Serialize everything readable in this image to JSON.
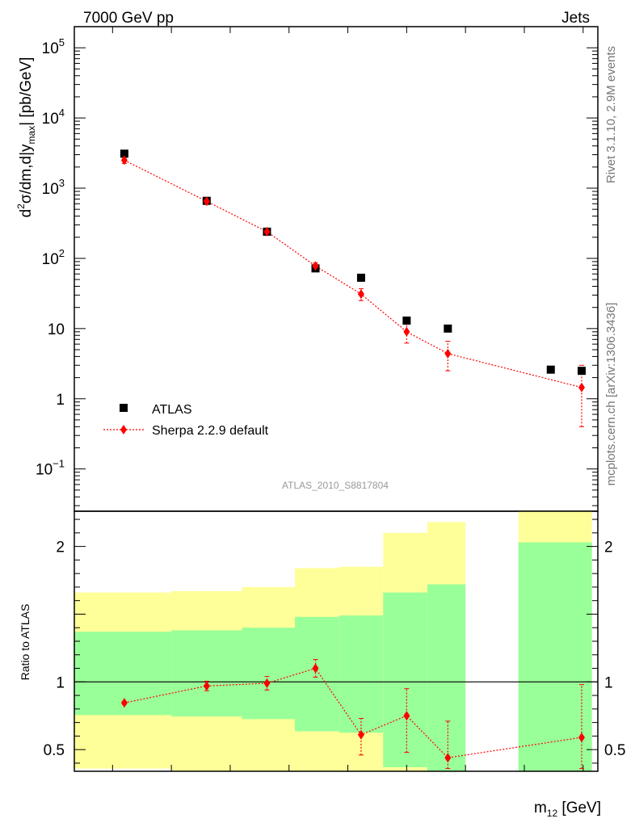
{
  "header": {
    "left": "7000 GeV pp",
    "right": "Jets"
  },
  "side_labels": {
    "rivet": "Rivet 3.1.10,  2.9M events",
    "mcplots": "mcplots.cern.ch [arXiv:1306.3436]"
  },
  "analysis_id": "ATLAS_2010_S8817804",
  "legend": {
    "placement": "bottom-left",
    "entries": [
      {
        "label": "ATLAS",
        "marker": "square",
        "color": "#000000"
      },
      {
        "label": "Sherpa 2.2.9 default",
        "marker": "diamond-dotted-line",
        "color": "#ff0000"
      }
    ]
  },
  "chart_data": [
    {
      "panel": "main",
      "type": "scatter",
      "ylabel": "d²σ/dm,d|y_max| [pb/GeV]",
      "ylabel_parts": {
        "prefix": "d",
        "sup": "2",
        "mid": "σ/dm,d|y",
        "sub": "max",
        "suffix": "| [pb/GeV]"
      },
      "xlabel": "",
      "yscale": "log",
      "ylim": [
        0.025,
        200000
      ],
      "yticks": [
        {
          "value": 0.1,
          "label": "10",
          "sup": "−1"
        },
        {
          "value": 1,
          "label": "1",
          "sup": ""
        },
        {
          "value": 10,
          "label": "10",
          "sup": ""
        },
        {
          "value": 100,
          "label": "10",
          "sup": "2"
        },
        {
          "value": 1000,
          "label": "10",
          "sup": "3"
        },
        {
          "value": 10000,
          "label": "10",
          "sup": "4"
        },
        {
          "value": 100000,
          "label": "10",
          "sup": "5"
        }
      ],
      "xlim": [
        70,
        1850
      ],
      "series": [
        {
          "name": "ATLAS",
          "color": "#000000",
          "x": [
            240,
            520,
            725,
            890,
            1045,
            1200,
            1340,
            1690,
            1795
          ],
          "y": [
            3100,
            660,
            240,
            72,
            53,
            13,
            10,
            2.6,
            2.5
          ]
        },
        {
          "name": "Sherpa 2.2.9 default",
          "color": "#ff0000",
          "x": [
            240,
            520,
            725,
            890,
            1045,
            1200,
            1340,
            1795
          ],
          "y": [
            2500,
            650,
            240,
            78,
            31,
            9,
            4.4,
            1.45
          ],
          "yerr_low": [
            2250,
            610,
            230,
            70,
            25,
            6.2,
            2.5,
            0.4
          ],
          "yerr_high": [
            2750,
            690,
            250,
            86,
            37,
            11.5,
            6.6,
            3.0
          ]
        }
      ]
    },
    {
      "panel": "ratio",
      "type": "scatter",
      "ylabel": "Ratio to ATLAS",
      "xlabel": "m₁₂ [GeV]",
      "xlabel_parts": {
        "main": "m",
        "sub": "12",
        "unit": " [GeV]"
      },
      "ylim": [
        0.34,
        2.26
      ],
      "yticks": [
        {
          "value": 0.5,
          "label": "0.5"
        },
        {
          "value": 1,
          "label": "1"
        },
        {
          "value": 2,
          "label": "2"
        }
      ],
      "reference_line": 1,
      "bands": [
        {
          "x0": 70,
          "x1": 400,
          "green": [
            0.755,
            1.37
          ],
          "yellow": [
            0.36,
            1.66
          ]
        },
        {
          "x0": 400,
          "x1": 640,
          "green": [
            0.745,
            1.38
          ],
          "yellow": [
            0.34,
            1.67
          ]
        },
        {
          "x0": 640,
          "x1": 820,
          "green": [
            0.725,
            1.4
          ],
          "yellow": [
            0.34,
            1.7
          ]
        },
        {
          "x0": 820,
          "x1": 970,
          "green": [
            0.635,
            1.48
          ],
          "yellow": [
            0.34,
            1.84
          ]
        },
        {
          "x0": 970,
          "x1": 1120,
          "green": [
            0.625,
            1.49
          ],
          "yellow": [
            0.34,
            1.85
          ]
        },
        {
          "x0": 1120,
          "x1": 1270,
          "green": [
            0.37,
            1.66
          ],
          "yellow": [
            0.34,
            2.1
          ]
        },
        {
          "x0": 1270,
          "x1": 1400,
          "green": [
            0.34,
            1.72
          ],
          "yellow": [
            0.34,
            2.18
          ]
        },
        {
          "x0": 1580,
          "x1": 1830,
          "green": [
            0.34,
            2.03
          ],
          "yellow": [
            0.34,
            2.26
          ]
        }
      ],
      "series": [
        {
          "name": "Sherpa 2.2.9 default",
          "color": "#ff0000",
          "x": [
            240,
            520,
            725,
            890,
            1045,
            1200,
            1340,
            1795
          ],
          "y": [
            0.845,
            0.97,
            0.99,
            1.1,
            0.61,
            0.75,
            0.44,
            0.59
          ],
          "yerr_low": [
            0.835,
            0.935,
            0.94,
            1.035,
            0.46,
            0.48,
            0.36,
            0.36
          ],
          "yerr_high": [
            0.855,
            1.005,
            1.04,
            1.165,
            0.73,
            0.95,
            0.71,
            0.98
          ]
        }
      ]
    }
  ]
}
